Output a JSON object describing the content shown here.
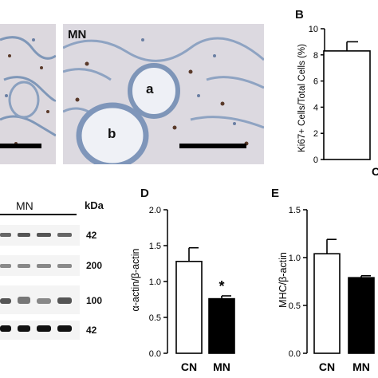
{
  "panel_A": {
    "micro_right_label": "MN",
    "region_a": "a",
    "region_b": "b"
  },
  "panel_B": {
    "label": "B",
    "ylabel": "Ki67+ Cells/Total Cells (%)",
    "cut_xtick": "C"
  },
  "panel_C": {
    "group_label": "MN",
    "unit_header": "kDa",
    "band_sizes": [
      "42",
      "200",
      "100",
      "42"
    ]
  },
  "chart_data": [
    {
      "panel": "B",
      "type": "bar",
      "categories": [
        "C"
      ],
      "values": [
        8.3
      ],
      "errors": [
        0.7
      ],
      "ylabel": "Ki67+ Cells/Total Cells (%)",
      "ylim": [
        0,
        10
      ],
      "yticks": [
        "0",
        "2",
        "4",
        "6",
        "8",
        "10"
      ]
    },
    {
      "panel": "D",
      "label": "D",
      "type": "bar",
      "categories": [
        "CN",
        "MN"
      ],
      "values": [
        1.28,
        0.76
      ],
      "errors": [
        0.19,
        0.04
      ],
      "fills": [
        "#ffffff",
        "#000000"
      ],
      "annotation": "*",
      "ylabel": "α-actin/β-actin",
      "ylim": [
        0,
        2.0
      ],
      "yticks": [
        "0.0",
        "0.5",
        "1.0",
        "1.5",
        "2.0"
      ]
    },
    {
      "panel": "E",
      "label": "E",
      "type": "bar",
      "categories": [
        "CN",
        "MN"
      ],
      "values": [
        1.04,
        0.79
      ],
      "errors": [
        0.15,
        0.02
      ],
      "fills": [
        "#ffffff",
        "#000000"
      ],
      "ylabel": "MHC/β-actin",
      "ylim": [
        0,
        1.5
      ],
      "yticks": [
        "0.0",
        "0.5",
        "1.0",
        "1.5"
      ]
    }
  ]
}
